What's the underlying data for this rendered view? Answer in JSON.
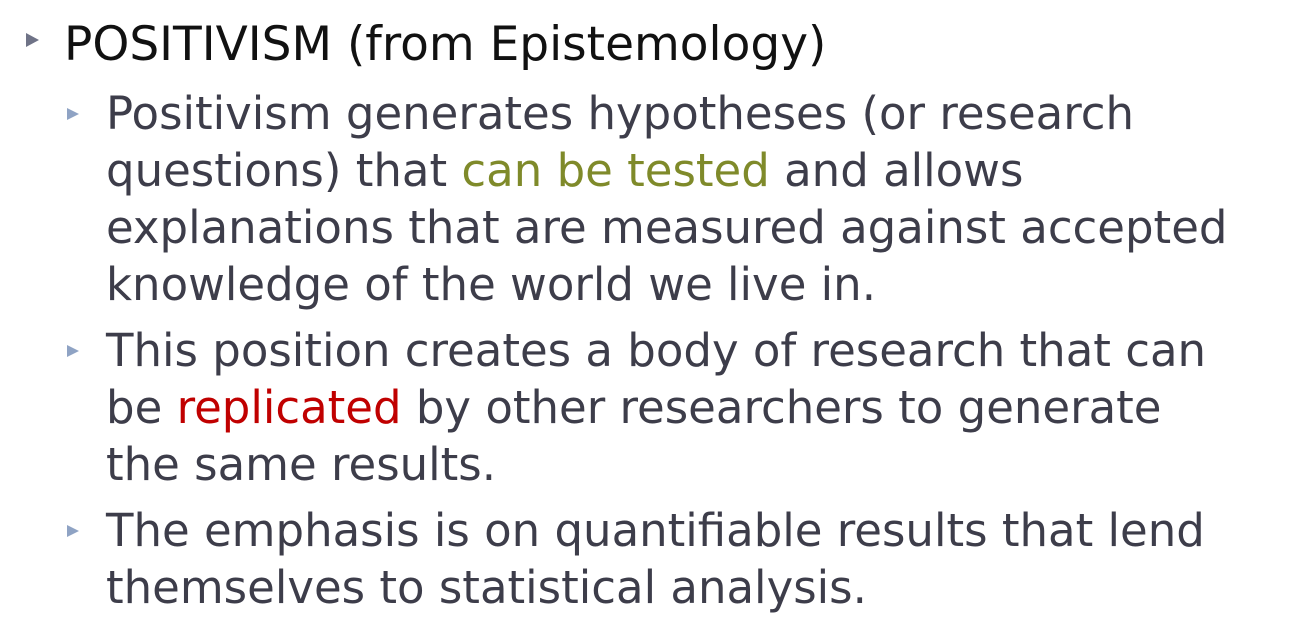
{
  "heading": "POSITIVISM (from Epistemology)",
  "bullets": [
    {
      "lines": [
        [
          "Positivism generates hypotheses (or research"
        ],
        [
          "questions) that ",
          "can be tested",
          " and allows"
        ],
        [
          "explanations that are measured against accepted"
        ],
        [
          "knowledge of the world we live in."
        ]
      ]
    },
    {
      "lines": [
        [
          "This position creates a body of research that can"
        ],
        [
          "be ",
          "replicated",
          " by other researchers to generate"
        ],
        [
          "the same results."
        ]
      ]
    },
    {
      "lines": [
        [
          "The emphasis is on quantifiable results that lend"
        ],
        [
          "themselves to statistical analysis."
        ]
      ]
    }
  ],
  "icons": {
    "level1_bullet": "triangle-right-icon",
    "level2_bullet": "triangle-right-icon"
  },
  "colors": {
    "heading": "#111111",
    "body_text": "#3d3d4a",
    "bullet1": "#6f7387",
    "bullet2": "#8fa3c4",
    "highlight_olive": "#7f8a2a",
    "highlight_red": "#c00000"
  }
}
